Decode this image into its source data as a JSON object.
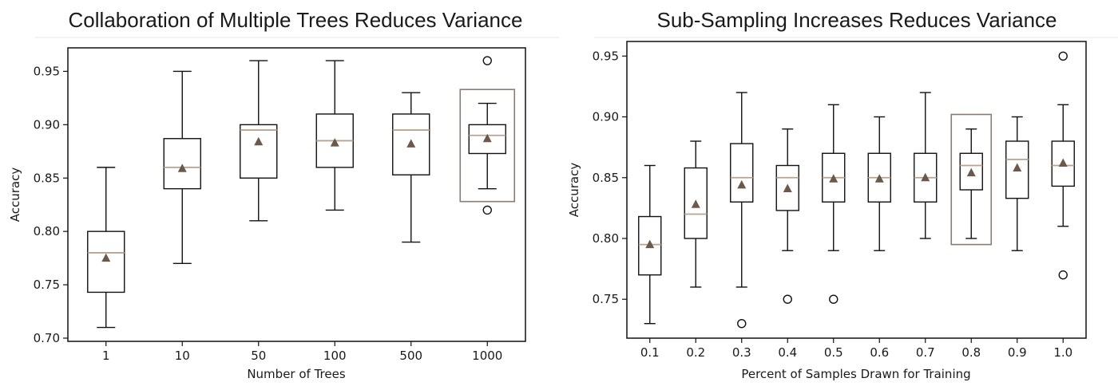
{
  "colors": {
    "box": "#111111",
    "median": "#b9a38e",
    "mean_marker": "#6b5a4b",
    "highlight": "#8a7c72",
    "title_rule": "#e6e6e6"
  },
  "chart_data": [
    {
      "type": "box",
      "title": "Collaboration of Multiple Trees Reduces Variance",
      "xlabel": "Number of Trees",
      "ylabel": "Accuracy",
      "ylim": [
        0.697,
        0.972
      ],
      "yticks": [
        0.7,
        0.75,
        0.8,
        0.85,
        0.9,
        0.95
      ],
      "ytick_labels": [
        "0.70",
        "0.75",
        "0.80",
        "0.85",
        "0.90",
        "0.95"
      ],
      "grid": false,
      "categories": [
        "1",
        "10",
        "50",
        "100",
        "500",
        "1000"
      ],
      "boxes": [
        {
          "whislo": 0.71,
          "q1": 0.743,
          "med": 0.78,
          "q3": 0.8,
          "whishi": 0.86,
          "mean": 0.775,
          "fliers": []
        },
        {
          "whislo": 0.77,
          "q1": 0.84,
          "med": 0.86,
          "q3": 0.887,
          "whishi": 0.95,
          "mean": 0.859,
          "fliers": []
        },
        {
          "whislo": 0.81,
          "q1": 0.85,
          "med": 0.895,
          "q3": 0.9,
          "whishi": 0.96,
          "mean": 0.884,
          "fliers": []
        },
        {
          "whislo": 0.82,
          "q1": 0.86,
          "med": 0.885,
          "q3": 0.91,
          "whishi": 0.96,
          "mean": 0.883,
          "fliers": []
        },
        {
          "whislo": 0.79,
          "q1": 0.853,
          "med": 0.895,
          "q3": 0.91,
          "whishi": 0.93,
          "mean": 0.882,
          "fliers": []
        },
        {
          "whislo": 0.84,
          "q1": 0.873,
          "med": 0.89,
          "q3": 0.9,
          "whishi": 0.92,
          "mean": 0.887,
          "fliers": [
            0.96,
            0.82
          ]
        }
      ],
      "highlight": {
        "category": "1000",
        "y_range": [
          0.828,
          0.933
        ]
      }
    },
    {
      "type": "box",
      "title": "Sub-Sampling Increases Reduces Variance",
      "xlabel": "Percent of Samples Drawn for Training",
      "ylabel": "Accuracy",
      "ylim": [
        0.718,
        0.962
      ],
      "yticks": [
        0.75,
        0.8,
        0.85,
        0.9,
        0.95
      ],
      "ytick_labels": [
        "0.75",
        "0.80",
        "0.85",
        "0.90",
        "0.95"
      ],
      "grid": false,
      "categories": [
        "0.1",
        "0.2",
        "0.3",
        "0.4",
        "0.5",
        "0.6",
        "0.7",
        "0.8",
        "0.9",
        "1.0"
      ],
      "boxes": [
        {
          "whislo": 0.73,
          "q1": 0.77,
          "med": 0.795,
          "q3": 0.818,
          "whishi": 0.86,
          "mean": 0.795,
          "fliers": []
        },
        {
          "whislo": 0.76,
          "q1": 0.8,
          "med": 0.82,
          "q3": 0.858,
          "whishi": 0.88,
          "mean": 0.828,
          "fliers": []
        },
        {
          "whislo": 0.76,
          "q1": 0.83,
          "med": 0.85,
          "q3": 0.878,
          "whishi": 0.92,
          "mean": 0.844,
          "fliers": [
            0.73
          ]
        },
        {
          "whislo": 0.79,
          "q1": 0.823,
          "med": 0.85,
          "q3": 0.86,
          "whishi": 0.89,
          "mean": 0.841,
          "fliers": [
            0.75
          ]
        },
        {
          "whislo": 0.79,
          "q1": 0.83,
          "med": 0.85,
          "q3": 0.87,
          "whishi": 0.91,
          "mean": 0.849,
          "fliers": [
            0.75
          ]
        },
        {
          "whislo": 0.79,
          "q1": 0.83,
          "med": 0.85,
          "q3": 0.87,
          "whishi": 0.9,
          "mean": 0.849,
          "fliers": []
        },
        {
          "whislo": 0.8,
          "q1": 0.83,
          "med": 0.85,
          "q3": 0.87,
          "whishi": 0.92,
          "mean": 0.85,
          "fliers": []
        },
        {
          "whislo": 0.8,
          "q1": 0.84,
          "med": 0.86,
          "q3": 0.87,
          "whishi": 0.89,
          "mean": 0.854,
          "fliers": []
        },
        {
          "whislo": 0.79,
          "q1": 0.833,
          "med": 0.865,
          "q3": 0.88,
          "whishi": 0.9,
          "mean": 0.858,
          "fliers": []
        },
        {
          "whislo": 0.81,
          "q1": 0.843,
          "med": 0.86,
          "q3": 0.88,
          "whishi": 0.91,
          "mean": 0.862,
          "fliers": [
            0.95,
            0.77
          ]
        }
      ],
      "highlight": {
        "category": "0.8",
        "y_range": [
          0.795,
          0.902
        ]
      }
    }
  ]
}
